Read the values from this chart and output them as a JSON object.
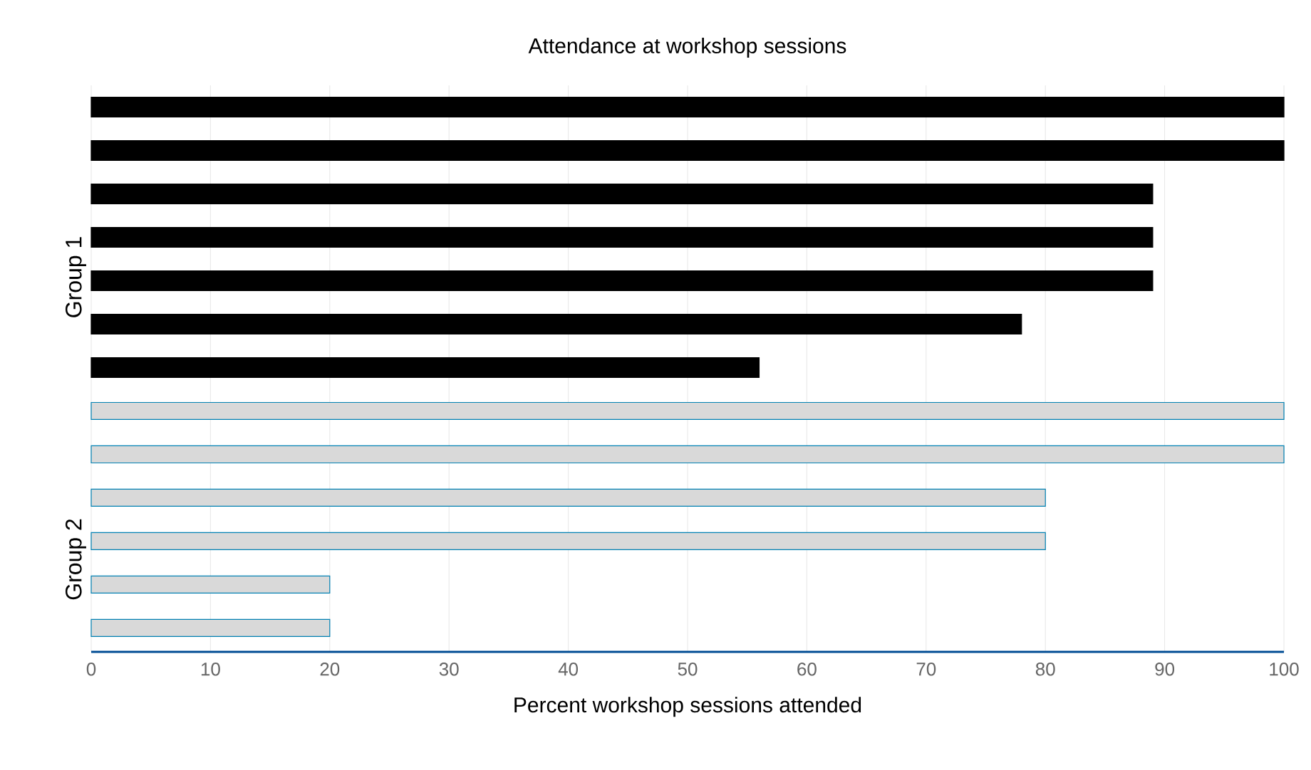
{
  "chart_data": {
    "type": "bar",
    "orientation": "horizontal",
    "title": "Attendance at workshop sessions",
    "xlabel": "Percent workshop sessions attended",
    "categories": [
      null,
      null,
      null,
      null,
      null,
      null,
      null,
      null,
      null,
      null,
      null,
      null,
      null
    ],
    "series": [
      {
        "name": "Group 1",
        "color": "#000000",
        "values": [
          100,
          100,
          89,
          89,
          89,
          78,
          56,
          null,
          null,
          null,
          null,
          null,
          null
        ]
      },
      {
        "name": "Group 2",
        "color": "#d9d9d9",
        "values": [
          null,
          null,
          null,
          null,
          null,
          null,
          null,
          100,
          100,
          80,
          80,
          20,
          20
        ]
      }
    ],
    "xlim": [
      0,
      100
    ],
    "xticks": [
      0,
      10,
      20,
      30,
      40,
      50,
      60,
      70,
      80,
      90,
      100
    ],
    "grid": "x"
  }
}
